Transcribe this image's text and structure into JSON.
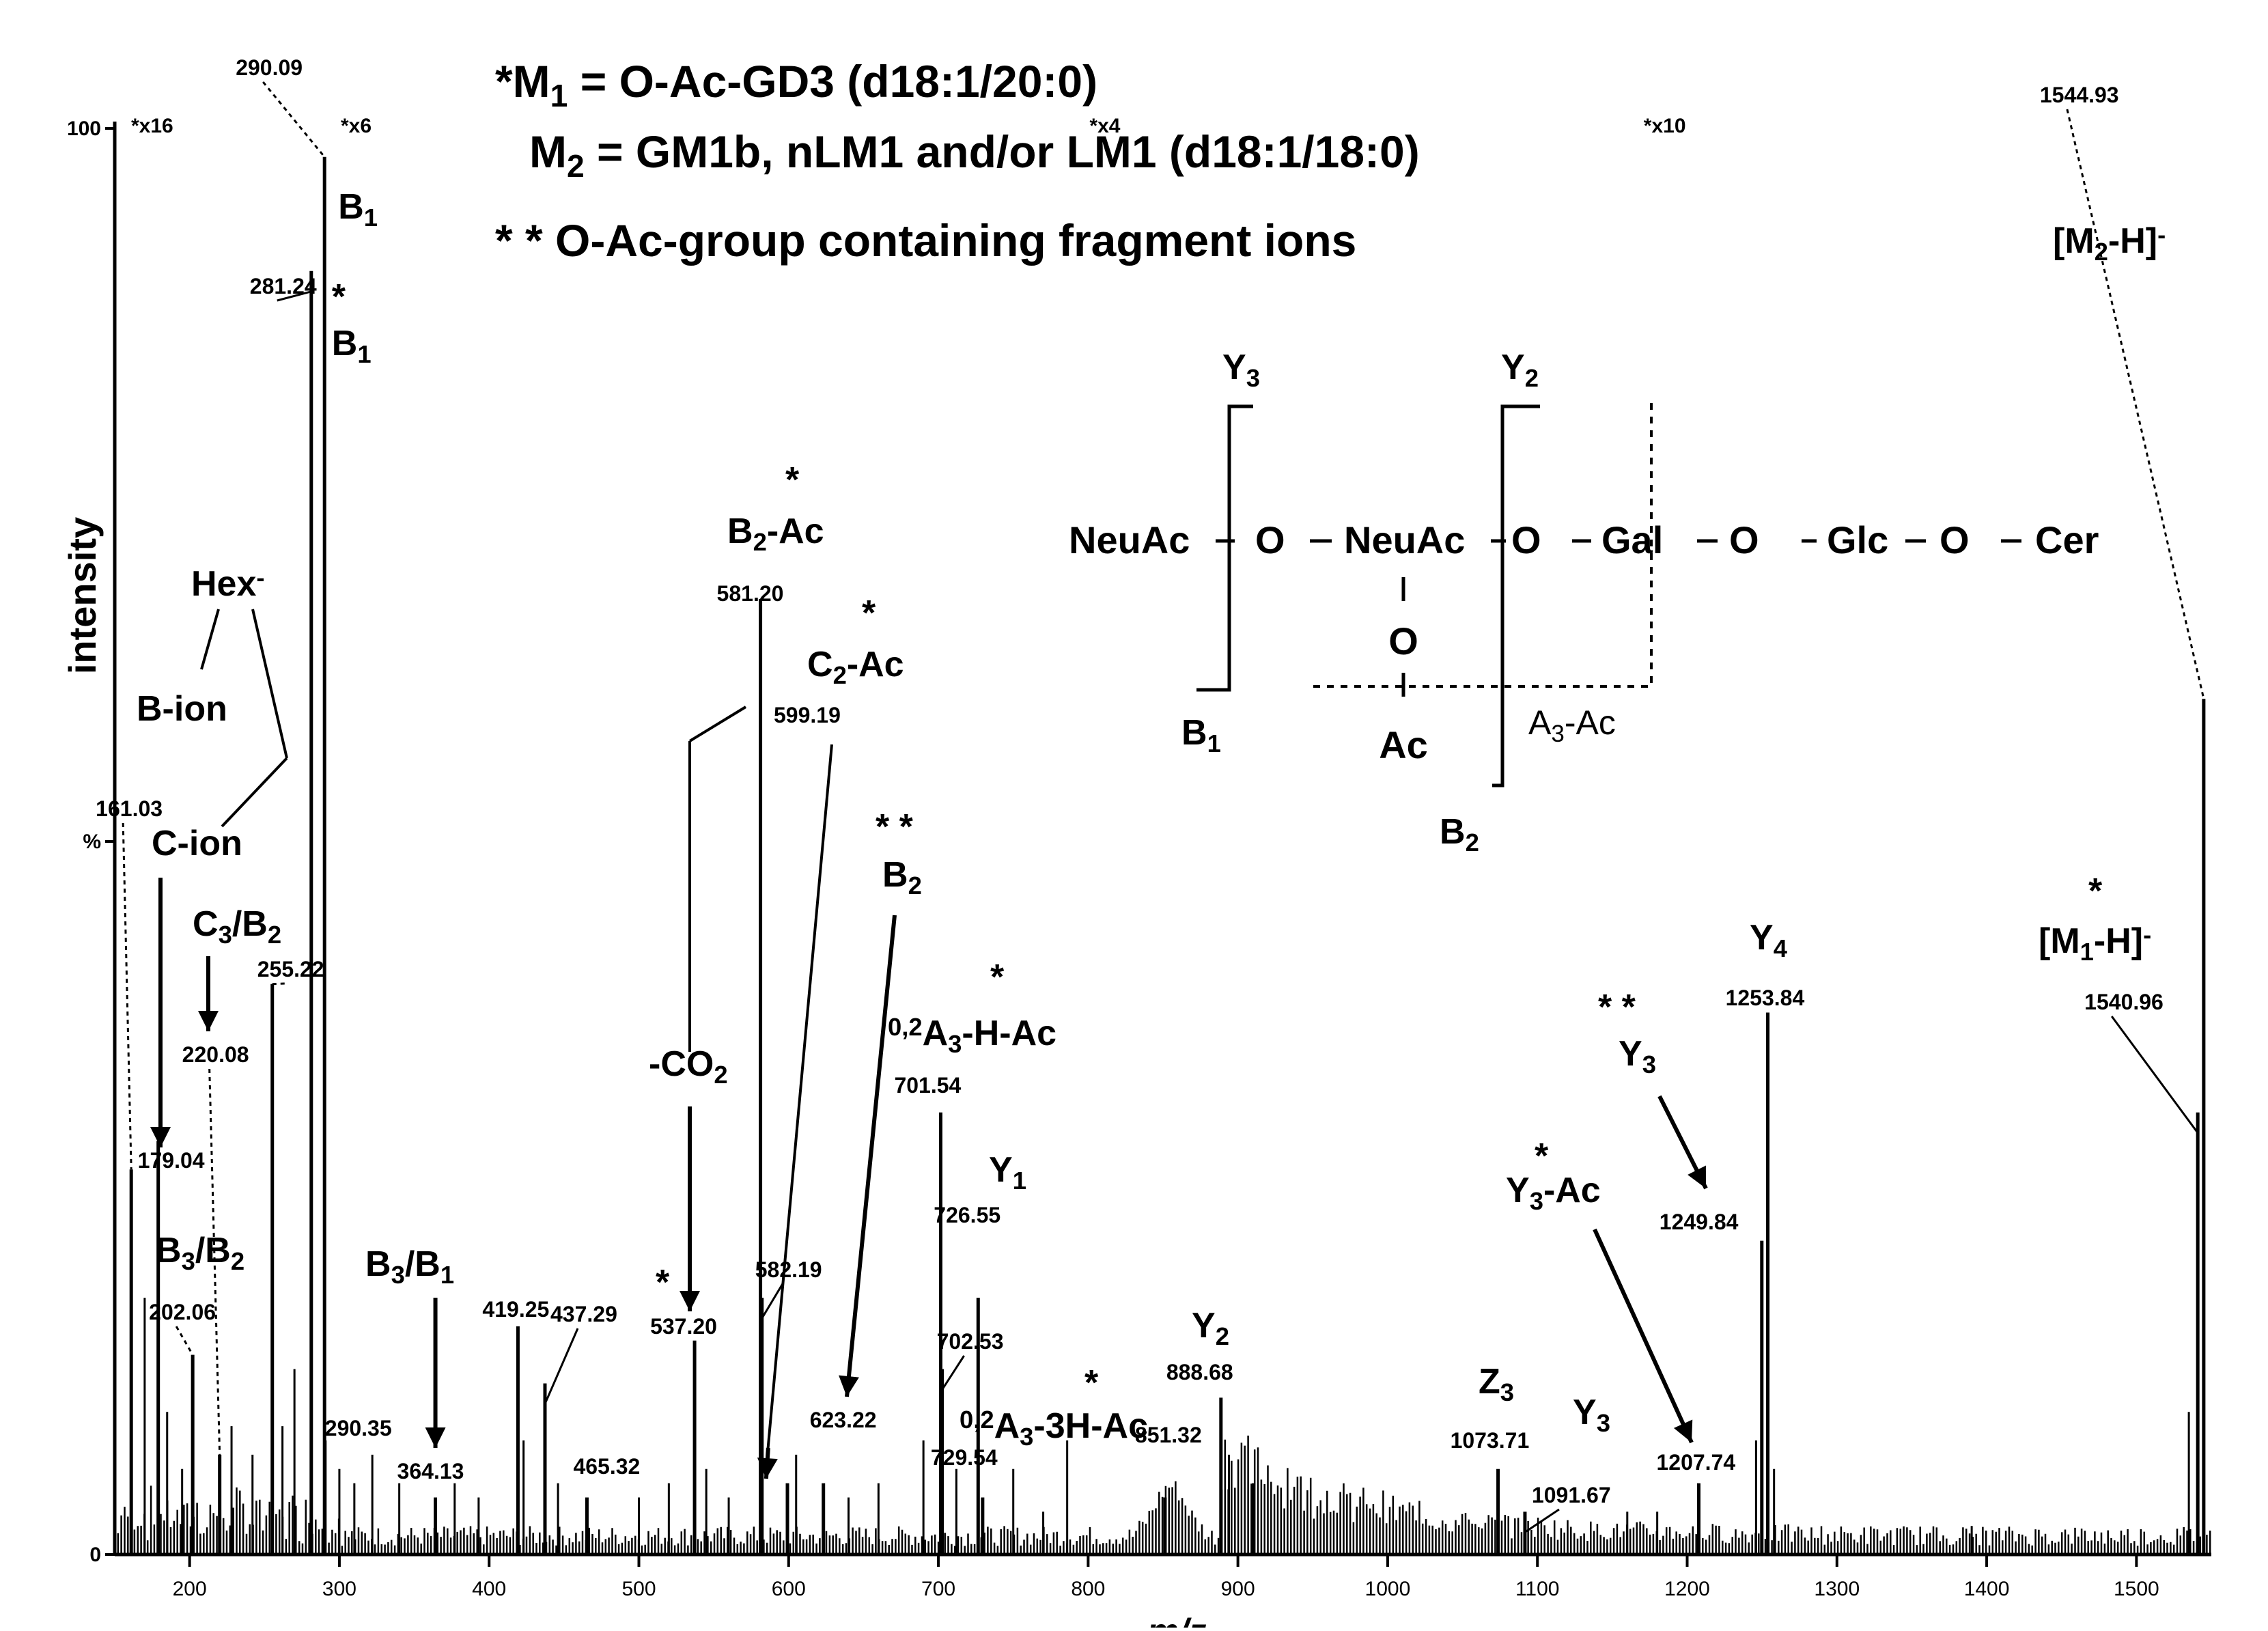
{
  "header": {
    "m1_text": "M1 = O-Ac-GD3 (d18:1/20:0)",
    "m2_text": "M2 = GM1b, nLM1 and/or LM1 (d18:1/18:0)",
    "note_text": "** O-Ac-group containing fragment ions"
  },
  "chart_data": {
    "type": "bar",
    "subtype": "mass-spectrum",
    "xlabel": "m/z",
    "ylabel": "intensity",
    "xlim": [
      150,
      1550
    ],
    "ylim": [
      0,
      100
    ],
    "x_ticks": [
      200,
      300,
      400,
      500,
      600,
      700,
      800,
      900,
      1000,
      1100,
      1200,
      1300,
      1400,
      1500
    ],
    "y_tick_labels": [
      {
        "label": "100",
        "value": 100
      },
      {
        "label": "%",
        "value": 50
      },
      {
        "label": "0",
        "value": 0
      }
    ],
    "magnification_labels": [
      {
        "label": "x16",
        "x": 150
      },
      {
        "label": "x6",
        "x": 290
      },
      {
        "label": "x4",
        "x": 790
      },
      {
        "label": "x10",
        "x": 1160
      }
    ],
    "peaks": [
      {
        "mz": 161.03,
        "intensity": 27,
        "label": "161.03"
      },
      {
        "mz": 179.04,
        "intensity": 29,
        "label": "179.04"
      },
      {
        "mz": 202.06,
        "intensity": 14,
        "label": "202.06"
      },
      {
        "mz": 220.08,
        "intensity": 7,
        "label": "220.08"
      },
      {
        "mz": 255.22,
        "intensity": 40,
        "label": "255.22"
      },
      {
        "mz": 281.24,
        "intensity": 90,
        "label": "281.24"
      },
      {
        "mz": 290.09,
        "intensity": 98,
        "label": "290.09"
      },
      {
        "mz": 290.35,
        "intensity": 8,
        "label": "290.35"
      },
      {
        "mz": 364.13,
        "intensity": 4,
        "label": "364.13"
      },
      {
        "mz": 419.25,
        "intensity": 16,
        "label": "419.25"
      },
      {
        "mz": 437.29,
        "intensity": 12,
        "label": "437.29"
      },
      {
        "mz": 465.32,
        "intensity": 4,
        "label": "465.32"
      },
      {
        "mz": 537.2,
        "intensity": 15,
        "label": "537.20"
      },
      {
        "mz": 581.2,
        "intensity": 67,
        "label": "581.20"
      },
      {
        "mz": 582.19,
        "intensity": 18,
        "label": "582.19"
      },
      {
        "mz": 599.19,
        "intensity": 5,
        "label": "599.19"
      },
      {
        "mz": 623.22,
        "intensity": 5,
        "label": "623.22"
      },
      {
        "mz": 701.54,
        "intensity": 31,
        "label": "701.54"
      },
      {
        "mz": 702.53,
        "intensity": 13,
        "label": "702.53"
      },
      {
        "mz": 726.55,
        "intensity": 18,
        "label": "726.55"
      },
      {
        "mz": 729.54,
        "intensity": 4,
        "label": "729.54"
      },
      {
        "mz": 851.32,
        "intensity": 4,
        "label": "851.32"
      },
      {
        "mz": 888.68,
        "intensity": 11,
        "label": "888.68"
      },
      {
        "mz": 1073.71,
        "intensity": 6,
        "label": "1073.71"
      },
      {
        "mz": 1091.67,
        "intensity": 3,
        "label": "1091.67"
      },
      {
        "mz": 1207.74,
        "intensity": 5,
        "label": "1207.74"
      },
      {
        "mz": 1249.84,
        "intensity": 22,
        "label": "1249.84"
      },
      {
        "mz": 1253.84,
        "intensity": 38,
        "label": "1253.84"
      },
      {
        "mz": 1540.96,
        "intensity": 31,
        "label": "1540.96"
      },
      {
        "mz": 1544.93,
        "intensity": 60,
        "label": "1544.93"
      }
    ],
    "annotations": [
      {
        "label": "B1",
        "mz": 290.09
      },
      {
        "label": "*B1",
        "mz": 281.24
      },
      {
        "label": "Hex-",
        "mz": 170
      },
      {
        "label": "B-ion",
        "mz": 161.03
      },
      {
        "label": "C-ion",
        "mz": 179.04
      },
      {
        "label": "C3/B2",
        "mz": 220.08
      },
      {
        "label": "B3/B2",
        "mz": 202.06
      },
      {
        "label": "B3/B1",
        "mz": 364.13
      },
      {
        "label": "*B2-Ac",
        "mz": 581.2
      },
      {
        "label": "*C2-Ac",
        "mz": 599.19
      },
      {
        "label": "-CO2",
        "mz": 537.2
      },
      {
        "label": "**B2",
        "mz": 623.22
      },
      {
        "label": "*0,2A3-H-Ac",
        "mz": 701.54
      },
      {
        "label": "Y1",
        "mz": 726.55
      },
      {
        "label": "*0,2A3-3H-Ac",
        "mz": 729.54
      },
      {
        "label": "Y2",
        "mz": 888.68
      },
      {
        "label": "Z3",
        "mz": 1073.71
      },
      {
        "label": "Y3",
        "mz": 1091.67
      },
      {
        "label": "*Y3-Ac",
        "mz": 1207.74
      },
      {
        "label": "**Y3",
        "mz": 1249.84
      },
      {
        "label": "Y4",
        "mz": 1253.84
      },
      {
        "label": "*[M1-H]-",
        "mz": 1540.96
      },
      {
        "label": "[M2-H]-",
        "mz": 1544.93
      }
    ],
    "structure": {
      "chain": [
        "NeuAc",
        "O",
        "NeuAc",
        "O",
        "Gal",
        "O",
        "Glc",
        "O",
        "Cer"
      ],
      "branch": [
        "O",
        "Ac"
      ],
      "cleavages": [
        "Y3",
        "Y2",
        "B1",
        "B2",
        "A3-Ac"
      ]
    }
  },
  "colors": {
    "ink": "#000000",
    "background": "#ffffff"
  }
}
